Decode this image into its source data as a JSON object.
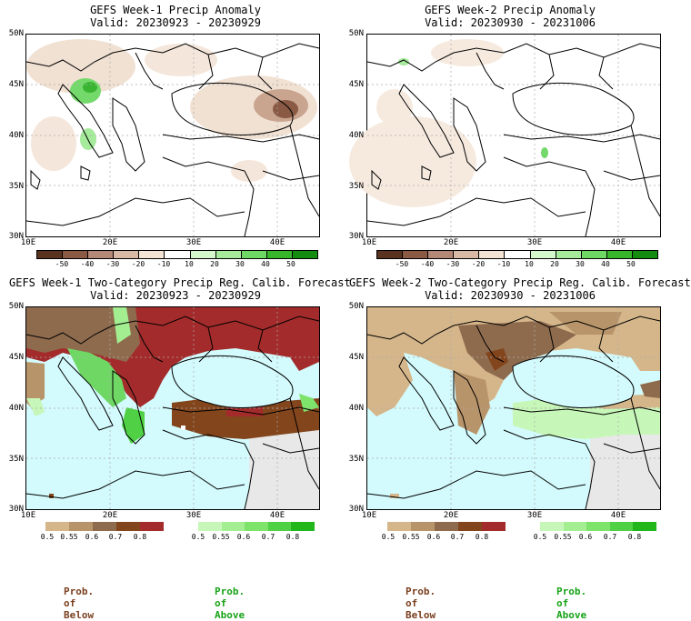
{
  "panels": [
    {
      "title": "GEFS Week-1 Precip Anomaly",
      "valid": "Valid: 20230923 - 20230929"
    },
    {
      "title": "GEFS Week-2 Precip Anomaly",
      "valid": "Valid: 20230930 - 20231006"
    },
    {
      "title": "GEFS Week-1 Two-Category Precip Reg. Calib. Forecast",
      "valid": "Valid: 20230923 - 20230929"
    },
    {
      "title": "GEFS Week-2 Two-Category Precip Reg. Calib. Forecast",
      "valid": "Valid: 20230930 - 20231006"
    }
  ],
  "lat_labels": [
    "50N",
    "45N",
    "40N",
    "35N",
    "30N"
  ],
  "lon_labels": [
    "10E",
    "20E",
    "30E",
    "40E"
  ],
  "anomaly_scale": {
    "labels": [
      "-50",
      "-40",
      "-30",
      "-20",
      "-10",
      "10",
      "20",
      "30",
      "40",
      "50"
    ],
    "colors": [
      "#5a3320",
      "#8a5a44",
      "#b38877",
      "#d8b9a6",
      "#f3e4d6",
      "#ffffff",
      "#d4f7cc",
      "#a6ea9b",
      "#6fd865",
      "#37b62c",
      "#138c10"
    ]
  },
  "prob_below_scale": {
    "labels": [
      "0.5",
      "0.55",
      "0.6",
      "0.7",
      "0.8"
    ],
    "colors": [
      "#d5b68a",
      "#b8946a",
      "#8f6b4e",
      "#82451c",
      "#a32b2b"
    ]
  },
  "prob_above_scale": {
    "labels": [
      "0.5",
      "0.55",
      "0.6",
      "0.7",
      "0.8"
    ],
    "colors": [
      "#c6f7b8",
      "#a2ee90",
      "#7ee36a",
      "#4fd045",
      "#20b61c"
    ]
  },
  "footer": {
    "below": "Prob. of Below",
    "above": "Prob. of Above"
  },
  "colors": {
    "sea": "#d3fafc",
    "land_mask": "#e8e8e8",
    "below_text": "#7a3f1f",
    "above_text": "#17a317"
  }
}
